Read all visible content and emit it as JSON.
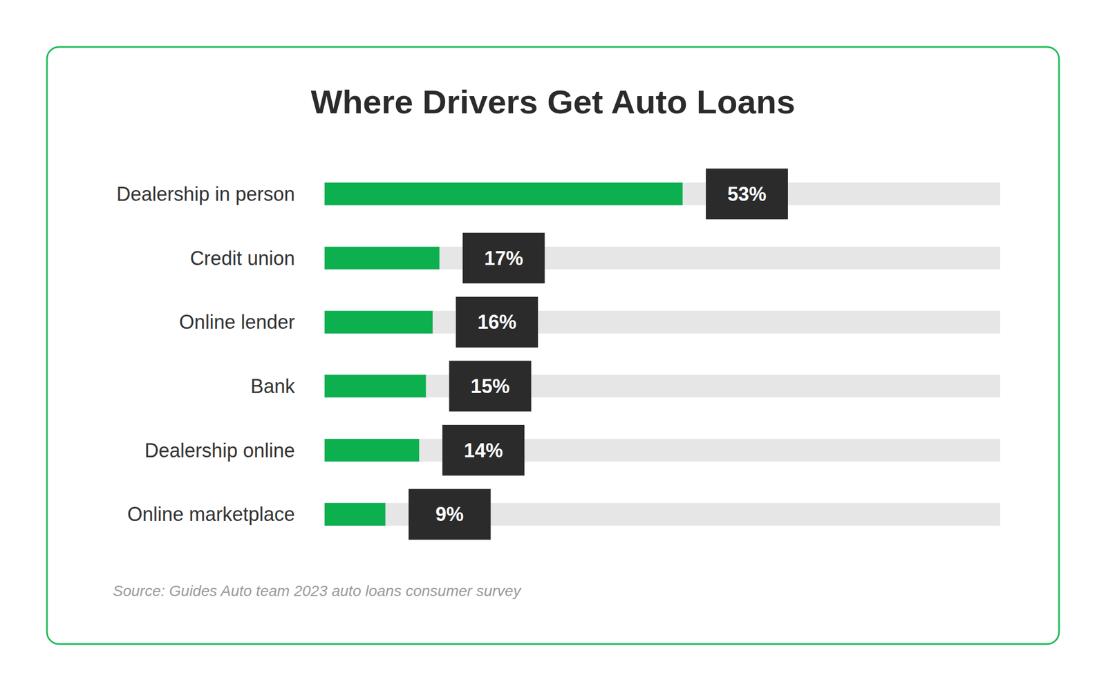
{
  "chart_data": {
    "type": "bar",
    "orientation": "horizontal",
    "title": "Where Drivers Get Auto Loans",
    "source": "Source: Guides Auto team 2023 auto loans consumer survey",
    "categories": [
      "Dealership in person",
      "Credit union",
      "Online lender",
      "Bank",
      "Dealership online",
      "Online marketplace"
    ],
    "values": [
      53,
      17,
      16,
      15,
      14,
      9
    ],
    "value_labels": [
      "53%",
      "17%",
      "16%",
      "15%",
      "14%",
      "9%"
    ],
    "color": "#0db04f",
    "xlim": [
      0,
      100
    ],
    "grid": false,
    "data_labels": true,
    "tick_labels": "y"
  }
}
